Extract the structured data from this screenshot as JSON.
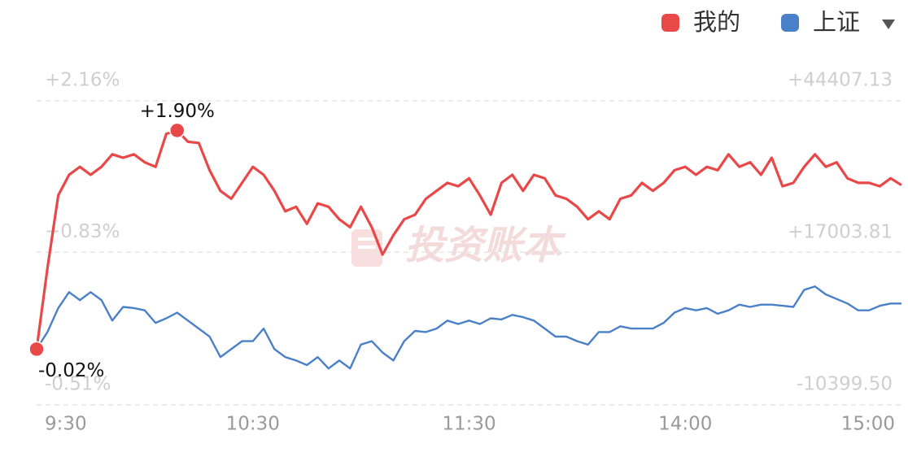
{
  "chart_data": {
    "type": "line",
    "watermark": "投资账本",
    "legend": "top-right",
    "xlim": [
      0,
      80
    ],
    "xticks": [
      {
        "value": 0,
        "label": "9:30"
      },
      {
        "value": 20,
        "label": "10:30"
      },
      {
        "value": 40,
        "label": "11:30"
      },
      {
        "value": 60,
        "label": "14:00"
      },
      {
        "value": 80,
        "label": "15:00"
      }
    ],
    "ylim": [
      -0.51,
      2.16
    ],
    "yticks": [
      {
        "value": -0.51,
        "label": "-0.51%"
      },
      {
        "value": 0.83,
        "label": "+0.83%"
      },
      {
        "value": 2.16,
        "label": "+2.16%"
      }
    ],
    "y2lim": [
      -10399.5,
      44407.13
    ],
    "y2ticks": [
      {
        "value": -10399.5,
        "label": "-10399.50"
      },
      {
        "value": 17003.81,
        "label": "+17003.81"
      },
      {
        "value": 44407.13,
        "label": "+44407.13"
      }
    ],
    "grid": true,
    "series": [
      {
        "name": "我的",
        "color": "#e84848",
        "values": [
          -0.02,
          0.69,
          1.33,
          1.51,
          1.58,
          1.51,
          1.58,
          1.69,
          1.66,
          1.69,
          1.62,
          1.58,
          1.87,
          1.9,
          1.8,
          1.79,
          1.55,
          1.37,
          1.3,
          1.44,
          1.58,
          1.51,
          1.37,
          1.19,
          1.23,
          1.08,
          1.26,
          1.23,
          1.12,
          1.05,
          1.23,
          1.05,
          0.81,
          0.98,
          1.12,
          1.16,
          1.3,
          1.37,
          1.44,
          1.41,
          1.48,
          1.33,
          1.16,
          1.44,
          1.51,
          1.37,
          1.51,
          1.48,
          1.33,
          1.3,
          1.23,
          1.12,
          1.19,
          1.12,
          1.3,
          1.33,
          1.44,
          1.37,
          1.44,
          1.55,
          1.58,
          1.51,
          1.58,
          1.55,
          1.69,
          1.58,
          1.62,
          1.51,
          1.66,
          1.41,
          1.44,
          1.58,
          1.69,
          1.58,
          1.62,
          1.48,
          1.44,
          1.44,
          1.41,
          1.48,
          1.42
        ]
      },
      {
        "name": "上证",
        "color": "#4a80c8",
        "values": [
          -0.02,
          0.13,
          0.34,
          0.48,
          0.41,
          0.48,
          0.41,
          0.23,
          0.35,
          0.34,
          0.32,
          0.21,
          0.25,
          0.3,
          0.23,
          0.16,
          0.09,
          -0.09,
          -0.02,
          0.05,
          0.05,
          0.16,
          -0.02,
          -0.09,
          -0.12,
          -0.16,
          -0.09,
          -0.19,
          -0.12,
          -0.19,
          0.02,
          0.05,
          -0.05,
          -0.12,
          0.05,
          0.14,
          0.13,
          0.16,
          0.23,
          0.2,
          0.23,
          0.2,
          0.25,
          0.24,
          0.28,
          0.26,
          0.23,
          0.16,
          0.09,
          0.09,
          0.05,
          0.02,
          0.13,
          0.13,
          0.18,
          0.16,
          0.16,
          0.16,
          0.21,
          0.3,
          0.34,
          0.32,
          0.34,
          0.29,
          0.32,
          0.37,
          0.35,
          0.37,
          0.37,
          0.36,
          0.35,
          0.5,
          0.53,
          0.46,
          0.42,
          0.38,
          0.32,
          0.32,
          0.36,
          0.38,
          0.38
        ]
      }
    ],
    "annotations": [
      {
        "label": "+1.90%",
        "value": 1.9
      },
      {
        "label": "-0.02%",
        "value": -0.02
      }
    ]
  }
}
